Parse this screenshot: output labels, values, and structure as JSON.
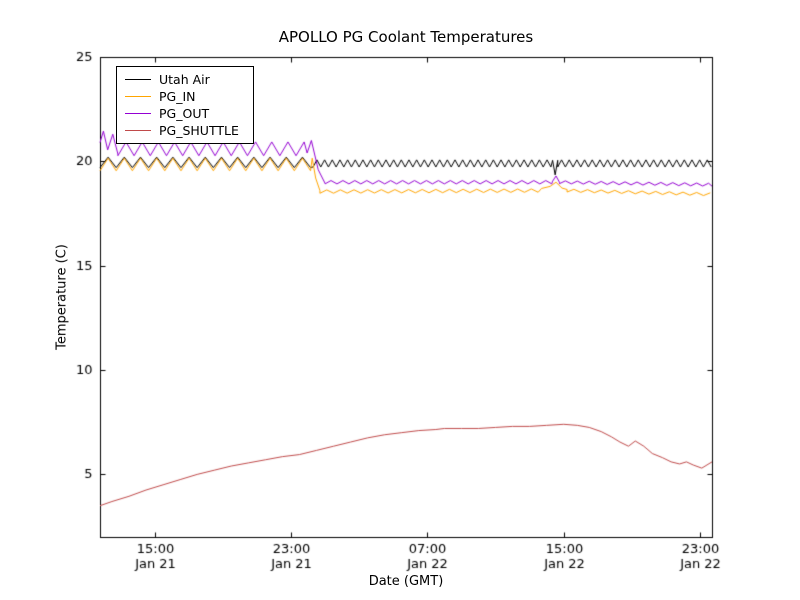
{
  "chart_data": {
    "type": "line",
    "title": "APOLLO PG Coolant Temperatures",
    "xlabel": "Date (GMT)",
    "ylabel": "Temperature (C)",
    "x_unit": "hours since Jan 21 00:00 GMT",
    "xlim": [
      11.8,
      47.7
    ],
    "ylim": [
      2,
      25
    ],
    "grid": false,
    "yticks": [
      5,
      10,
      15,
      20,
      25
    ],
    "xticks": [
      {
        "x": 15,
        "time": "15:00",
        "date": "Jan 21"
      },
      {
        "x": 23,
        "time": "23:00",
        "date": "Jan 21"
      },
      {
        "x": 31,
        "time": "07:00",
        "date": "Jan 22"
      },
      {
        "x": 39,
        "time": "15:00",
        "date": "Jan 22"
      },
      {
        "x": 47,
        "time": "23:00",
        "date": "Jan 22"
      }
    ],
    "legend": {
      "position": "upper-left"
    },
    "frame_color": "#000000",
    "background_color": "#ffffff",
    "series": [
      {
        "name": "Utah Air",
        "color": "#000000",
        "segments": [
          {
            "kind": "osc",
            "x0": 11.8,
            "x1": 24.3,
            "base0": 19.95,
            "base1": 19.95,
            "amp0": 0.25,
            "amp1": 0.25,
            "period": 0.95
          },
          {
            "kind": "osc",
            "x0": 24.3,
            "x1": 38.3,
            "base0": 19.9,
            "base1": 19.9,
            "amp0": 0.17,
            "amp1": 0.17,
            "period": 0.45
          },
          {
            "kind": "points",
            "pts": [
              [
                38.35,
                20.05
              ],
              [
                38.5,
                19.35
              ],
              [
                38.65,
                20.05
              ]
            ]
          },
          {
            "kind": "osc",
            "x0": 38.65,
            "x1": 47.7,
            "base0": 19.9,
            "base1": 19.9,
            "amp0": 0.17,
            "amp1": 0.17,
            "period": 0.45
          }
        ]
      },
      {
        "name": "PG_IN",
        "color": "#ffa500",
        "segments": [
          {
            "kind": "osc",
            "x0": 11.8,
            "x1": 24.2,
            "base0": 19.85,
            "base1": 19.85,
            "amp0": 0.3,
            "amp1": 0.3,
            "period": 0.95
          },
          {
            "kind": "points",
            "pts": [
              [
                24.25,
                20.15
              ],
              [
                24.45,
                19.2
              ],
              [
                24.7,
                18.6
              ]
            ]
          },
          {
            "kind": "osc",
            "x0": 24.7,
            "x1": 37.6,
            "base0": 18.55,
            "base1": 18.6,
            "amp0": 0.08,
            "amp1": 0.08,
            "period": 0.8
          },
          {
            "kind": "points",
            "pts": [
              [
                37.7,
                18.7
              ],
              [
                38.2,
                18.8
              ],
              [
                38.55,
                19.0
              ],
              [
                38.9,
                18.72
              ],
              [
                39.2,
                18.65
              ]
            ]
          },
          {
            "kind": "osc",
            "x0": 39.2,
            "x1": 47.7,
            "base0": 18.6,
            "base1": 18.42,
            "amp0": 0.07,
            "amp1": 0.07,
            "period": 0.8
          }
        ]
      },
      {
        "name": "PG_OUT",
        "color": "#9400d3",
        "segments": [
          {
            "kind": "points",
            "pts": [
              [
                11.8,
                20.9
              ],
              [
                12.0,
                21.45
              ],
              [
                12.25,
                20.55
              ],
              [
                12.55,
                21.3
              ],
              [
                12.85,
                20.35
              ]
            ]
          },
          {
            "kind": "osc",
            "x0": 12.85,
            "x1": 23.9,
            "base0": 20.6,
            "base1": 20.6,
            "amp0": 0.33,
            "amp1": 0.33,
            "period": 0.95
          },
          {
            "kind": "points",
            "pts": [
              [
                23.95,
                20.4
              ],
              [
                24.2,
                21.0
              ],
              [
                24.6,
                19.6
              ],
              [
                25.0,
                18.95
              ]
            ]
          },
          {
            "kind": "osc",
            "x0": 25.0,
            "x1": 38.3,
            "base0": 19.0,
            "base1": 19.0,
            "amp0": 0.08,
            "amp1": 0.08,
            "period": 0.7
          },
          {
            "kind": "points",
            "pts": [
              [
                38.35,
                19.05
              ],
              [
                38.55,
                19.3
              ],
              [
                38.75,
                19.0
              ]
            ]
          },
          {
            "kind": "osc",
            "x0": 38.75,
            "x1": 47.7,
            "base0": 19.0,
            "base1": 18.88,
            "amp0": 0.07,
            "amp1": 0.07,
            "period": 0.7
          }
        ]
      },
      {
        "name": "PG_SHUTTLE",
        "color": "#c04a4a",
        "segments": [
          {
            "kind": "points",
            "pts": [
              [
                11.8,
                3.5
              ],
              [
                12.5,
                3.7
              ],
              [
                13.5,
                3.95
              ],
              [
                14.5,
                4.25
              ],
              [
                15.5,
                4.5
              ],
              [
                16.5,
                4.75
              ],
              [
                17.5,
                5.0
              ],
              [
                18.5,
                5.2
              ],
              [
                19.5,
                5.4
              ],
              [
                20.5,
                5.55
              ],
              [
                21.5,
                5.7
              ],
              [
                22.5,
                5.85
              ],
              [
                23.5,
                5.95
              ],
              [
                24.5,
                6.15
              ],
              [
                25.5,
                6.35
              ],
              [
                26.5,
                6.55
              ],
              [
                27.5,
                6.75
              ],
              [
                28.5,
                6.9
              ],
              [
                29.5,
                7.0
              ],
              [
                30.5,
                7.1
              ],
              [
                31.5,
                7.15
              ],
              [
                32.0,
                7.2
              ],
              [
                33.0,
                7.2
              ],
              [
                34.0,
                7.2
              ],
              [
                35.0,
                7.25
              ],
              [
                36.0,
                7.3
              ],
              [
                37.0,
                7.3
              ],
              [
                38.0,
                7.35
              ],
              [
                39.0,
                7.4
              ],
              [
                39.8,
                7.35
              ],
              [
                40.5,
                7.25
              ],
              [
                41.2,
                7.05
              ],
              [
                41.8,
                6.8
              ],
              [
                42.3,
                6.55
              ],
              [
                42.8,
                6.35
              ],
              [
                43.2,
                6.6
              ],
              [
                43.7,
                6.35
              ],
              [
                44.2,
                6.0
              ],
              [
                44.8,
                5.8
              ],
              [
                45.3,
                5.6
              ],
              [
                45.8,
                5.5
              ],
              [
                46.2,
                5.6
              ],
              [
                46.6,
                5.45
              ],
              [
                47.1,
                5.3
              ],
              [
                47.7,
                5.6
              ]
            ]
          }
        ]
      }
    ]
  }
}
